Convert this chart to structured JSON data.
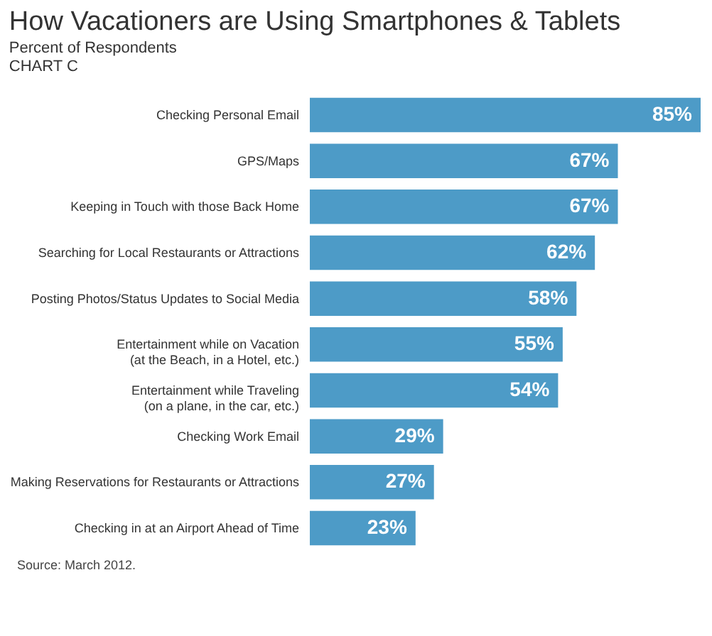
{
  "chart_data": {
    "type": "bar",
    "orientation": "horizontal",
    "title": "How Vacationers are Using Smartphones & Tablets",
    "subtitle": "Percent of Respondents\nCHART C",
    "categories": [
      "Checking Personal Email",
      "GPS/Maps",
      "Keeping in Touch with those Back Home",
      "Searching for Local Restaurants or Attractions",
      "Posting Photos/Status Updates to Social Media",
      "Entertainment while on Vacation\n(at the Beach, in a Hotel, etc.)",
      "Entertainment while Traveling\n(on a plane, in the car, etc.)",
      "Checking Work Email",
      "Making Reservations for Restaurants or Attractions",
      "Checking in at an Airport Ahead of Time"
    ],
    "values": [
      85,
      67,
      67,
      62,
      58,
      55,
      54,
      29,
      27,
      23
    ],
    "value_labels": [
      "85%",
      "67%",
      "67%",
      "62%",
      "58%",
      "55%",
      "54%",
      "29%",
      "27%",
      "23%"
    ],
    "color": "#4d9bc7",
    "annotations": [
      "Source: March 2012."
    ]
  }
}
